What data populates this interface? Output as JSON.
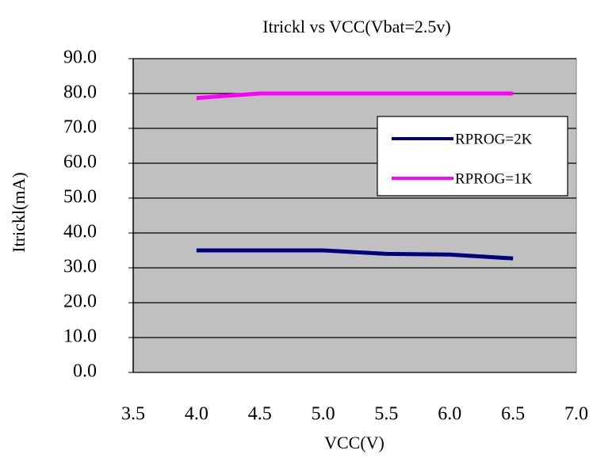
{
  "chart_data": {
    "type": "line",
    "title": "Itrickl vs VCC(Vbat=2.5v)",
    "xlabel": "VCC(V)",
    "ylabel": "Itrickl(mA)",
    "x": [
      4.0,
      4.5,
      5.0,
      5.5,
      6.0,
      6.5
    ],
    "series": [
      {
        "name": "RPROG=2K",
        "color": "#000080",
        "values": [
          35,
          35,
          35,
          34,
          33.8,
          32.7
        ]
      },
      {
        "name": "RPROG=1K",
        "color": "#ff00ff",
        "values": [
          78.7,
          80,
          80,
          80,
          80,
          80
        ]
      }
    ],
    "xlim": [
      3.5,
      7.0
    ],
    "xticks": [
      3.5,
      {
        "value": 4.0,
        "label": "4.0"
      },
      4.5,
      {
        "value": 5.0,
        "label": "5.0"
      },
      5.5,
      {
        "value": 6.0,
        "label": "6.0"
      },
      6.5,
      {
        "value": 7.0,
        "label": "7.0"
      }
    ],
    "ylim": [
      0,
      90
    ],
    "yticks": [
      {
        "value": 0,
        "label": "0.0"
      },
      {
        "value": 10,
        "label": "10.0"
      },
      {
        "value": 20,
        "label": "20.0"
      },
      {
        "value": 30,
        "label": "30.0"
      },
      {
        "value": 40,
        "label": "40.0"
      },
      {
        "value": 50,
        "label": "50.0"
      },
      {
        "value": 60,
        "label": "60.0"
      },
      {
        "value": 70,
        "label": "70.0"
      },
      {
        "value": 80,
        "label": "80.0"
      },
      {
        "value": 90,
        "label": "90.0"
      }
    ],
    "grid": true,
    "legend": "right",
    "background": "#c0c0c0"
  }
}
